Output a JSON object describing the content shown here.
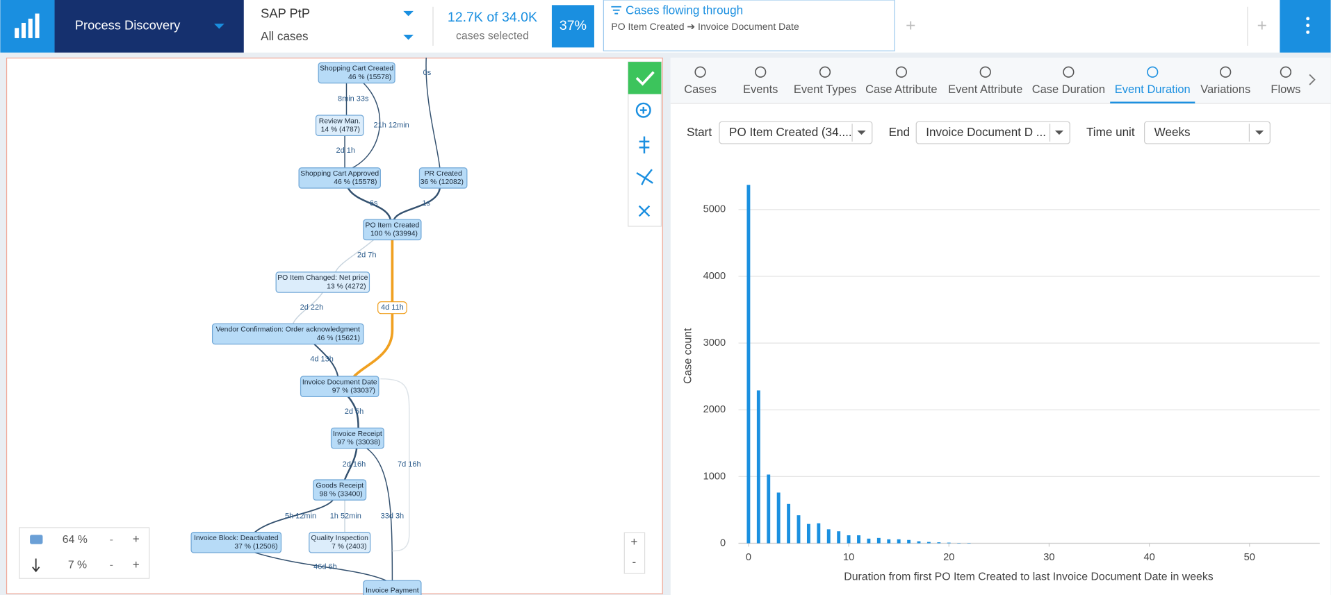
{
  "header": {
    "app_title": "Process Discovery",
    "dataset": "SAP PtP",
    "case_filter": "All cases",
    "selected": "12.7K of 34.0K",
    "selected_label": "cases selected",
    "percent": "37%",
    "filter_title": "Cases flowing through",
    "filter_detail": "PO Item Created ➔ Invoice Document Date",
    "add": "+"
  },
  "process_map": {
    "nodes": [
      {
        "name": "Shopping Cart Created",
        "stats": "46 % (15578)"
      },
      {
        "name": "Review Man.",
        "stats": "14 % (4787)"
      },
      {
        "name": "Shopping Cart Approved",
        "stats": "46 % (15578)"
      },
      {
        "name": "PR Created",
        "stats": "36 % (12082)"
      },
      {
        "name": "PO Item Created",
        "stats": "100 % (33994)"
      },
      {
        "name": "PO Item Changed: Net price",
        "stats": "13 % (4272)"
      },
      {
        "name": "Vendor Confirmation: Order acknowledgment",
        "stats": "46 % (15621)"
      },
      {
        "name": "Invoice Document Date",
        "stats": "97 % (33037)"
      },
      {
        "name": "Invoice Receipt",
        "stats": "97 % (33038)"
      },
      {
        "name": "Goods Receipt",
        "stats": "98 % (33400)"
      },
      {
        "name": "Invoice Block: Deactivated",
        "stats": "37 % (12506)"
      },
      {
        "name": "Quality Inspection",
        "stats": "7 % (2403)"
      },
      {
        "name": "Invoice Payment"
      }
    ],
    "edges": [
      "8min 33s",
      "21h 12min",
      "0s",
      "2d 1h",
      "6s",
      "1s",
      "2d 7h",
      "4d 11h",
      "2d 22h",
      "4d 13h",
      "2d 5h",
      "2d 16h",
      "7d 16h",
      "5h 12min",
      "1h 52min",
      "33d 3h",
      "46d 6h"
    ],
    "legend": {
      "activities": "64 %",
      "paths": "7 %",
      "minus": "-",
      "plus": "+"
    },
    "zoom": {
      "in": "+",
      "out": "-"
    }
  },
  "tabs": {
    "items": [
      "Cases",
      "Events",
      "Event Types",
      "Case Attribute",
      "Event Attribute",
      "Case Duration",
      "Event Duration",
      "Variations",
      "Flows"
    ],
    "active": 6
  },
  "controls": {
    "start_label": "Start",
    "start_value": "PO Item Created (34....",
    "end_label": "End",
    "end_value": "Invoice Document D ...",
    "unit_label": "Time unit",
    "unit_value": "Weeks"
  },
  "chart_data": {
    "type": "bar",
    "x_label": "Duration from first PO Item Created to last Invoice Document Date in weeks",
    "y_label": "Case count",
    "x": [
      0,
      1,
      2,
      3,
      4,
      5,
      6,
      7,
      8,
      9,
      10,
      11,
      12,
      13,
      14,
      15,
      16,
      17,
      18,
      19,
      20,
      21,
      22
    ],
    "values": [
      5370,
      2290,
      1030,
      760,
      590,
      420,
      290,
      300,
      210,
      180,
      120,
      120,
      70,
      80,
      60,
      60,
      50,
      30,
      20,
      15,
      10,
      5,
      5
    ],
    "color": "#1a90e0",
    "xlim": [
      -1,
      57
    ],
    "xticks": [
      0,
      10,
      20,
      30,
      40,
      50
    ],
    "ylim": [
      0,
      5600
    ],
    "yticks": [
      0,
      1000,
      2000,
      3000,
      4000,
      5000
    ],
    "grid": true
  }
}
